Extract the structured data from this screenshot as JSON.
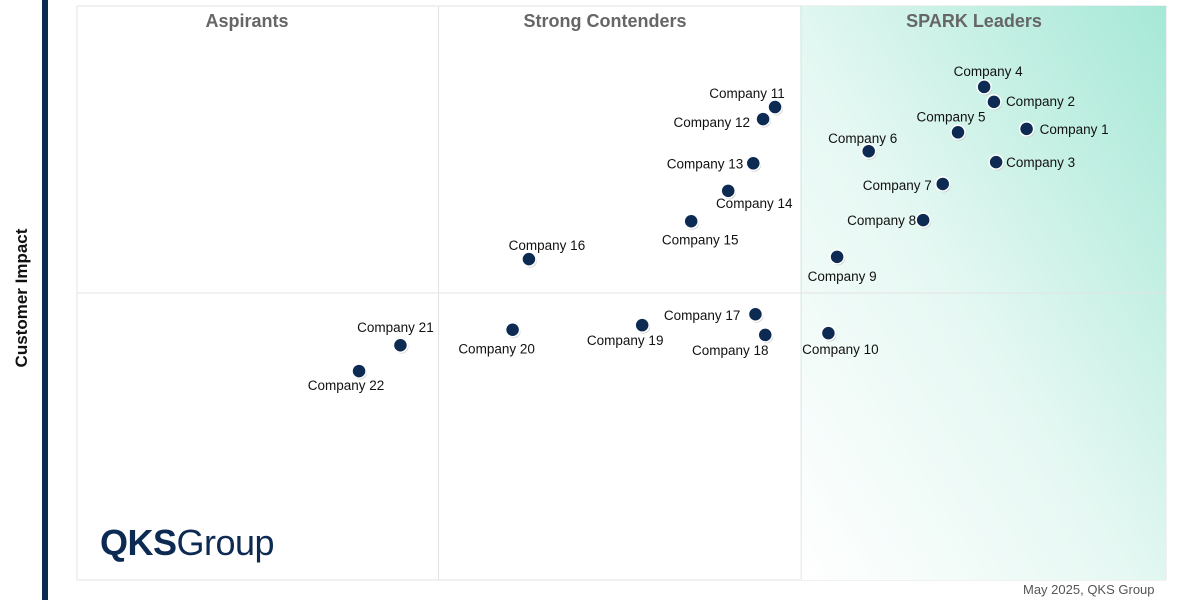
{
  "chart_data": {
    "type": "scatter",
    "title": "",
    "xlabel": "",
    "ylabel": "Customer Impact",
    "xlim": [
      0,
      100
    ],
    "ylim": [
      0,
      100
    ],
    "grid": false,
    "quadrant_dividers": {
      "x": [
        33.2,
        66.5
      ],
      "y": 50
    },
    "quadrant_titles": [
      "Aspirants",
      "Strong Contenders",
      "SPARK Leaders"
    ],
    "marker_color": "#0d2a52",
    "leader_gradient_color": "#a6e8d6",
    "points": [
      {
        "label": "Company 1",
        "x": 87.2,
        "y": 78.6
      },
      {
        "label": "Company 2",
        "x": 84.2,
        "y": 83.3
      },
      {
        "label": "Company 3",
        "x": 84.4,
        "y": 72.8
      },
      {
        "label": "Company 4",
        "x": 83.3,
        "y": 85.9
      },
      {
        "label": "Company 5",
        "x": 80.9,
        "y": 78.0
      },
      {
        "label": "Company 6",
        "x": 72.7,
        "y": 74.7
      },
      {
        "label": "Company 7",
        "x": 79.5,
        "y": 69.0
      },
      {
        "label": "Company 8",
        "x": 77.7,
        "y": 62.7
      },
      {
        "label": "Company 9",
        "x": 69.8,
        "y": 56.3
      },
      {
        "label": "Company 10",
        "x": 69.0,
        "y": 43.0
      },
      {
        "label": "Company 11",
        "x": 64.1,
        "y": 82.4
      },
      {
        "label": "Company 12",
        "x": 63.0,
        "y": 80.3
      },
      {
        "label": "Company 13",
        "x": 62.1,
        "y": 72.6
      },
      {
        "label": "Company 14",
        "x": 59.8,
        "y": 67.8
      },
      {
        "label": "Company 15",
        "x": 56.4,
        "y": 62.5
      },
      {
        "label": "Company 16",
        "x": 41.5,
        "y": 55.9
      },
      {
        "label": "Company 17",
        "x": 62.3,
        "y": 46.3
      },
      {
        "label": "Company 18",
        "x": 63.2,
        "y": 42.7
      },
      {
        "label": "Company 19",
        "x": 51.9,
        "y": 44.4
      },
      {
        "label": "Company 20",
        "x": 40.0,
        "y": 43.6
      },
      {
        "label": "Company 21",
        "x": 29.7,
        "y": 40.9
      },
      {
        "label": "Company 22",
        "x": 25.9,
        "y": 36.4
      }
    ]
  },
  "logo": {
    "bold": "QKS",
    "rest": "Group"
  },
  "credit": "May 2025, QKS Group"
}
